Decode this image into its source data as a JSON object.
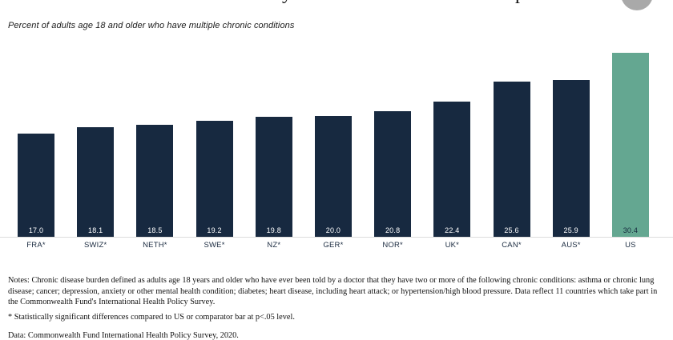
{
  "header": {
    "clipped_title_glyphs": [
      "y",
      "p"
    ],
    "circle_button": "round-button"
  },
  "subtitle": "Percent of adults age 18 and older who have multiple chronic conditions",
  "chart_data": {
    "type": "bar",
    "categories": [
      "FRA*",
      "SWIZ*",
      "NETH*",
      "SWE*",
      "NZ*",
      "GER*",
      "NOR*",
      "UK*",
      "CAN*",
      "AUS*",
      "US"
    ],
    "values": [
      17.0,
      18.1,
      18.5,
      19.2,
      19.8,
      20.0,
      20.8,
      22.4,
      25.6,
      25.9,
      30.4
    ],
    "value_label_format": "one-decimal",
    "value_label_position": "inside-bottom",
    "highlight_category": "US",
    "title": "",
    "xlabel": "",
    "ylabel": "",
    "ylim": [
      0,
      30.4
    ],
    "grid": false,
    "legend": "none"
  },
  "colors": {
    "bar": "#172940",
    "bar_highlight": "#64A791",
    "value_label": "#FFFFFF",
    "value_label_highlight": "#14283C",
    "axis_line": "#DBDBDB",
    "circle_button": "#A9A9A9"
  },
  "notes": "Notes: Chronic disease burden defined as adults age 18 years and older who have ever been told by a doctor that they have two or more of the following chronic conditions: asthma or chronic lung disease; cancer; depression, anxiety or other mental health condition; diabetes; heart disease, including heart attack; or hypertension/high blood pressure. Data reflect 11 countries which take part in the Commonwealth Fund's International Health Policy Survey.",
  "footnote": "* Statistically significant differences compared to US or comparator bar at p<.05 level.",
  "source": "Data: Commonwealth Fund International Health Policy Survey, 2020."
}
